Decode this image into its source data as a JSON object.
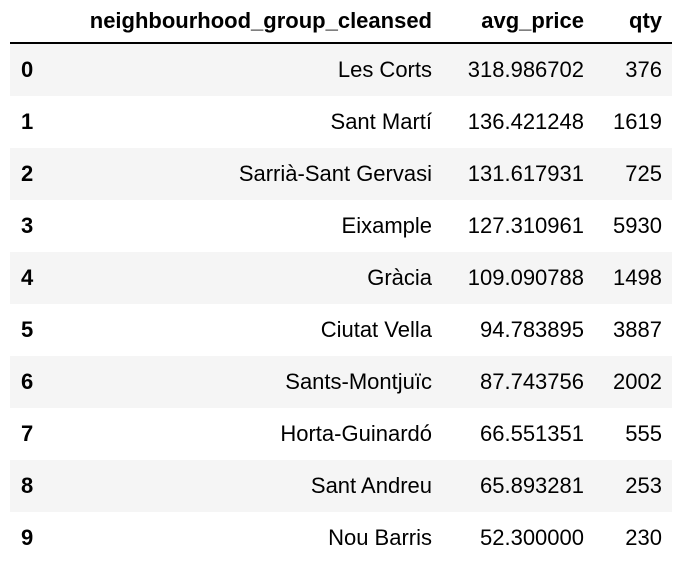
{
  "table": {
    "index_header": "",
    "columns": [
      "neighbourhood_group_cleansed",
      "avg_price",
      "qty"
    ],
    "rows": [
      {
        "index": "0",
        "neighbourhood_group_cleansed": "Les Corts",
        "avg_price": "318.986702",
        "qty": "376"
      },
      {
        "index": "1",
        "neighbourhood_group_cleansed": "Sant Martí",
        "avg_price": "136.421248",
        "qty": "1619"
      },
      {
        "index": "2",
        "neighbourhood_group_cleansed": "Sarrià-Sant Gervasi",
        "avg_price": "131.617931",
        "qty": "725"
      },
      {
        "index": "3",
        "neighbourhood_group_cleansed": "Eixample",
        "avg_price": "127.310961",
        "qty": "5930"
      },
      {
        "index": "4",
        "neighbourhood_group_cleansed": "Gràcia",
        "avg_price": "109.090788",
        "qty": "1498"
      },
      {
        "index": "5",
        "neighbourhood_group_cleansed": "Ciutat Vella",
        "avg_price": "94.783895",
        "qty": "3887"
      },
      {
        "index": "6",
        "neighbourhood_group_cleansed": "Sants-Montjuïc",
        "avg_price": "87.743756",
        "qty": "2002"
      },
      {
        "index": "7",
        "neighbourhood_group_cleansed": "Horta-Guinardó",
        "avg_price": "66.551351",
        "qty": "555"
      },
      {
        "index": "8",
        "neighbourhood_group_cleansed": "Sant Andreu",
        "avg_price": "65.893281",
        "qty": "253"
      },
      {
        "index": "9",
        "neighbourhood_group_cleansed": "Nou Barris",
        "avg_price": "52.300000",
        "qty": "230"
      }
    ]
  },
  "colors": {
    "odd_row_background": "#f5f5f5",
    "even_row_background": "#ffffff",
    "header_rule": "#000000",
    "text": "#000000"
  }
}
